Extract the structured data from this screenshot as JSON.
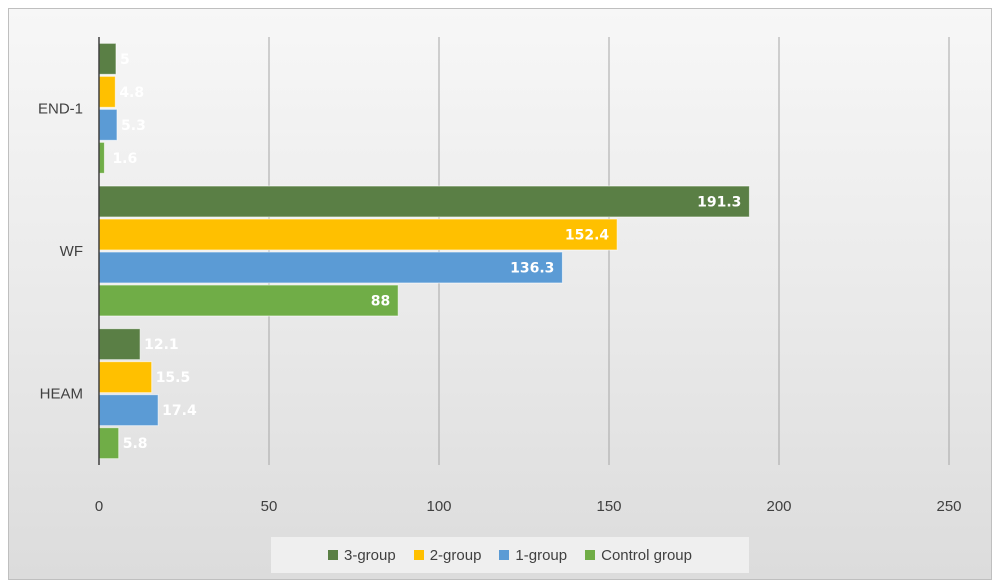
{
  "chart_data": {
    "type": "bar",
    "orientation": "horizontal",
    "title": "",
    "xlabel": "",
    "ylabel": "",
    "categories": [
      "END-1",
      "WF",
      "HEAM"
    ],
    "series": [
      {
        "name": "3-group",
        "color": "#5a7f45",
        "values": [
          5,
          191.3,
          12.1
        ],
        "labels": [
          "5",
          "191.3",
          "12.1"
        ]
      },
      {
        "name": "2-group",
        "color": "#ffc000",
        "values": [
          4.8,
          152.4,
          15.5
        ],
        "labels": [
          "4.8",
          "152.4",
          "15.5"
        ]
      },
      {
        "name": "1-group",
        "color": "#5b9bd5",
        "values": [
          5.3,
          136.3,
          17.4
        ],
        "labels": [
          "5.3",
          "136.3",
          "17.4"
        ]
      },
      {
        "name": "Control group",
        "color": "#70ad47",
        "values": [
          1.6,
          88,
          5.8
        ],
        "labels": [
          "1.6",
          "88",
          "5.8"
        ]
      }
    ],
    "xlim": [
      0,
      250
    ],
    "xticks": [
      "0",
      "50",
      "100",
      "150",
      "200",
      "250"
    ],
    "grid": "vertical",
    "legend": "bottom"
  }
}
